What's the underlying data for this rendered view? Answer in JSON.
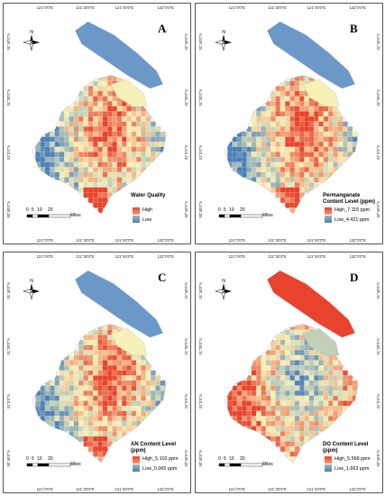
{
  "axes": {
    "top": [
      "121°0'0\"E",
      "121°20'0\"E",
      "121°40'0\"E",
      "122°0'0\"E"
    ],
    "bottom": [
      "121°0'0\"E",
      "121°20'0\"E",
      "121°40'0\"E",
      "122°0'0\"E"
    ],
    "left": [
      "31°40'0\"N",
      "31°20'0\"N",
      "31°0'0\"N",
      "30°40'0\"N"
    ],
    "right": [
      "31°40'0\"N",
      "31°20'0\"N",
      "31°0'0\"N",
      "30°40'0\"N"
    ]
  },
  "north": "N",
  "scalebar": {
    "ticks": [
      "0",
      "5",
      "10",
      "20"
    ],
    "unit": "Miles"
  },
  "panels": [
    {
      "letter": "A",
      "legend_title": "Water Quality",
      "high": "High",
      "low": "Low",
      "scheme": "a"
    },
    {
      "letter": "B",
      "legend_title": "Permanganate Content Level (ppm)",
      "high": "High_7.115 ppm",
      "low": "Low_4.421 ppm",
      "scheme": "b"
    },
    {
      "letter": "C",
      "legend_title": "AN Content Level (ppm)",
      "high": "High_5.102 ppm",
      "low": "Low_0.065 ppm",
      "scheme": "c"
    },
    {
      "letter": "D",
      "legend_title": "DO Content Level (ppm)",
      "high": "High_5.568 ppm",
      "low": "Low_1.663 ppm",
      "scheme": "d"
    }
  ],
  "colors": {
    "high": "#e8432d",
    "mid": "#f7f1b8",
    "low": "#4a7fb8",
    "island": "#6b98c7"
  }
}
